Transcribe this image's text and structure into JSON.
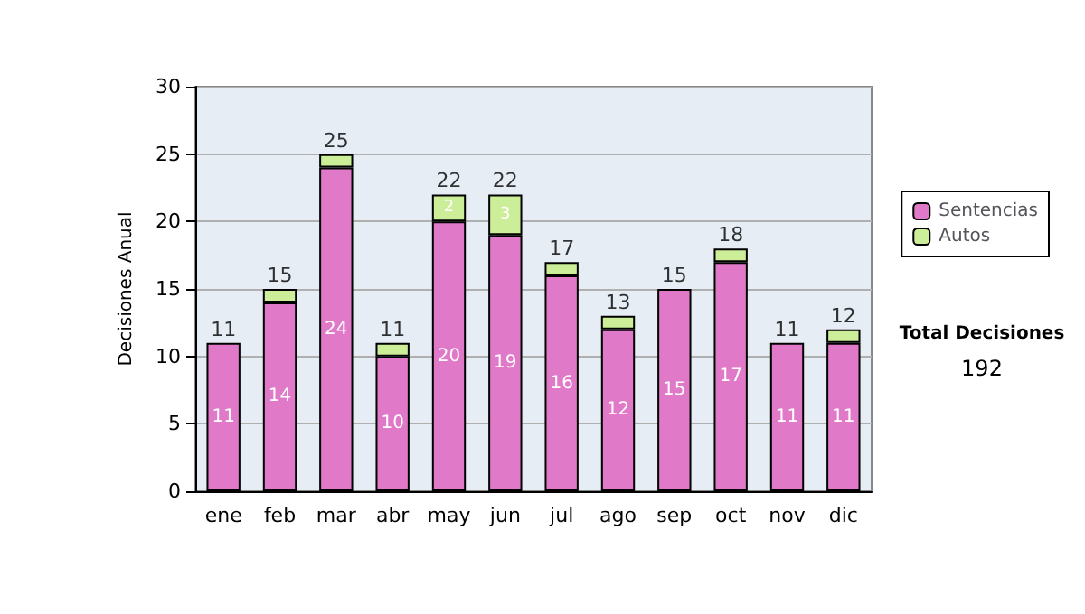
{
  "chart_data": {
    "type": "bar",
    "ylabel": "Decisiones Anual",
    "categories": [
      "ene",
      "feb",
      "mar",
      "abr",
      "may",
      "jun",
      "jul",
      "ago",
      "sep",
      "oct",
      "nov",
      "dic"
    ],
    "series": [
      {
        "name": "Sentencias",
        "color": "#e07ac8",
        "values": [
          11,
          14,
          24,
          10,
          20,
          19,
          16,
          12,
          15,
          17,
          11,
          11
        ],
        "value_labels": [
          "11",
          "14",
          "24",
          "10",
          "20",
          "19",
          "16",
          "12",
          "15",
          "17",
          "11",
          "11"
        ]
      },
      {
        "name": "Autos",
        "color": "#ccee99",
        "values": [
          0,
          1,
          1,
          1,
          2,
          3,
          1,
          1,
          0,
          1,
          0,
          1
        ],
        "value_labels": [
          null,
          null,
          null,
          null,
          "2",
          "3",
          null,
          null,
          null,
          null,
          null,
          null
        ]
      }
    ],
    "stacked": true,
    "totals": [
      "11",
      "15",
      "25",
      "11",
      "22",
      "22",
      "17",
      "13",
      "15",
      "18",
      "11",
      "12"
    ],
    "ylim": [
      0,
      30
    ],
    "yticks": [
      0,
      5,
      10,
      15,
      20,
      25,
      30
    ],
    "grid": "y",
    "legend": "right",
    "annotations": [
      "Total Decisiones",
      "192"
    ]
  }
}
